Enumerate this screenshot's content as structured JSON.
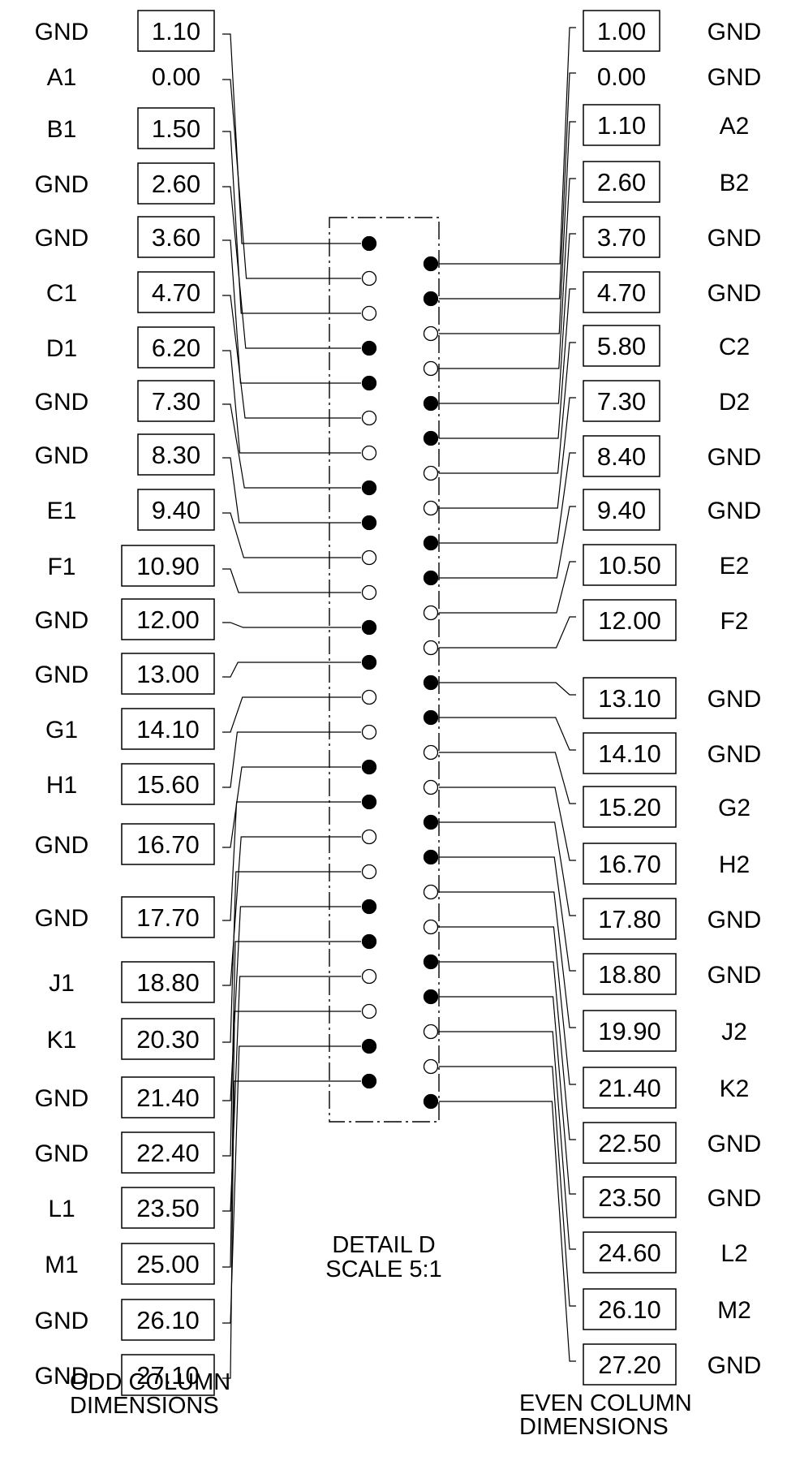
{
  "detail": {
    "title": "DETAIL D",
    "scale": "SCALE 5:1"
  },
  "captions": {
    "odd_line1": "ODD COLUMN",
    "odd_line2": "DIMENSIONS",
    "even_line1": "EVEN COLUMN",
    "even_line2": "DIMENSIONS"
  },
  "odd_column": [
    {
      "label": "GND",
      "value": "1.10",
      "boxed": true
    },
    {
      "label": "A1",
      "value": "0.00",
      "boxed": false
    },
    {
      "label": "B1",
      "value": "1.50",
      "boxed": true
    },
    {
      "label": "GND",
      "value": "2.60",
      "boxed": true
    },
    {
      "label": "GND",
      "value": "3.60",
      "boxed": true
    },
    {
      "label": "C1",
      "value": "4.70",
      "boxed": true
    },
    {
      "label": "D1",
      "value": "6.20",
      "boxed": true
    },
    {
      "label": "GND",
      "value": "7.30",
      "boxed": true
    },
    {
      "label": "GND",
      "value": "8.30",
      "boxed": true
    },
    {
      "label": "E1",
      "value": "9.40",
      "boxed": true
    },
    {
      "label": "F1",
      "value": "10.90",
      "boxed": true
    },
    {
      "label": "GND",
      "value": "12.00",
      "boxed": true
    },
    {
      "label": "GND",
      "value": "13.00",
      "boxed": true
    },
    {
      "label": "G1",
      "value": "14.10",
      "boxed": true
    },
    {
      "label": "H1",
      "value": "15.60",
      "boxed": true
    },
    {
      "label": "GND",
      "value": "16.70",
      "boxed": true
    },
    {
      "label": "GND",
      "value": "17.70",
      "boxed": true
    },
    {
      "label": "J1",
      "value": "18.80",
      "boxed": true
    },
    {
      "label": "K1",
      "value": "20.30",
      "boxed": true
    },
    {
      "label": "GND",
      "value": "21.40",
      "boxed": true
    },
    {
      "label": "GND",
      "value": "22.40",
      "boxed": true
    },
    {
      "label": "L1",
      "value": "23.50",
      "boxed": true
    },
    {
      "label": "M1",
      "value": "25.00",
      "boxed": true
    },
    {
      "label": "GND",
      "value": "26.10",
      "boxed": true
    },
    {
      "label": "GND",
      "value": "27.10",
      "boxed": true
    }
  ],
  "even_column": [
    {
      "label": "GND",
      "value": "1.00",
      "boxed": true
    },
    {
      "label": "GND",
      "value": "0.00",
      "boxed": false
    },
    {
      "label": "A2",
      "value": "1.10",
      "boxed": true
    },
    {
      "label": "B2",
      "value": "2.60",
      "boxed": true
    },
    {
      "label": "GND",
      "value": "3.70",
      "boxed": true
    },
    {
      "label": "GND",
      "value": "4.70",
      "boxed": true
    },
    {
      "label": "C2",
      "value": "5.80",
      "boxed": true
    },
    {
      "label": "D2",
      "value": "7.30",
      "boxed": true
    },
    {
      "label": "GND",
      "value": "8.40",
      "boxed": true
    },
    {
      "label": "GND",
      "value": "9.40",
      "boxed": true
    },
    {
      "label": "E2",
      "value": "10.50",
      "boxed": true
    },
    {
      "label": "F2",
      "value": "12.00",
      "boxed": true
    },
    {
      "label": "GND",
      "value": "13.10",
      "boxed": true
    },
    {
      "label": "GND",
      "value": "14.10",
      "boxed": true
    },
    {
      "label": "G2",
      "value": "15.20",
      "boxed": true
    },
    {
      "label": "H2",
      "value": "16.70",
      "boxed": true
    },
    {
      "label": "GND",
      "value": "17.80",
      "boxed": true
    },
    {
      "label": "GND",
      "value": "18.80",
      "boxed": true
    },
    {
      "label": "J2",
      "value": "19.90",
      "boxed": true
    },
    {
      "label": "K2",
      "value": "21.40",
      "boxed": true
    },
    {
      "label": "GND",
      "value": "22.50",
      "boxed": true
    },
    {
      "label": "GND",
      "value": "23.50",
      "boxed": true
    },
    {
      "label": "L2",
      "value": "24.60",
      "boxed": true
    },
    {
      "label": "M2",
      "value": "26.10",
      "boxed": true
    },
    {
      "label": "GND",
      "value": "27.20",
      "boxed": true
    }
  ]
}
